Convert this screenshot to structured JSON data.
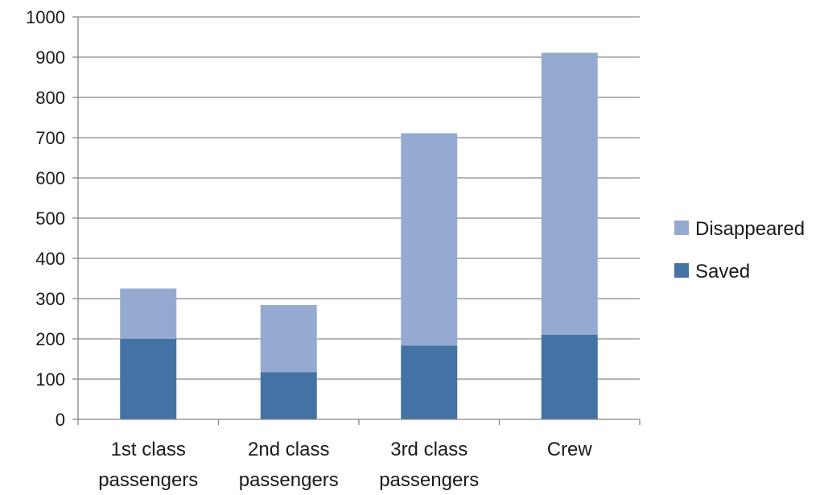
{
  "chart_data": {
    "type": "bar",
    "stacked": true,
    "categories": [
      [
        "1st class",
        "passengers"
      ],
      [
        "2nd class",
        "passengers"
      ],
      [
        "3rd class",
        "passengers"
      ],
      [
        "Crew"
      ]
    ],
    "series": [
      {
        "name": "Saved",
        "color": "#4472a4",
        "values": [
          200,
          117,
          183,
          210
        ]
      },
      {
        "name": "Disappeared",
        "color": "#95aad0",
        "values": [
          125,
          167,
          528,
          701
        ]
      }
    ],
    "ylim": [
      0,
      1000
    ],
    "yticks": [
      "0",
      "100",
      "200",
      "300",
      "400",
      "500",
      "600",
      "700",
      "800",
      "900",
      "1000"
    ],
    "grid": true,
    "legend_position": "right",
    "legend_order": [
      "Disappeared",
      "Saved"
    ],
    "title": "",
    "xlabel": "",
    "ylabel": ""
  }
}
